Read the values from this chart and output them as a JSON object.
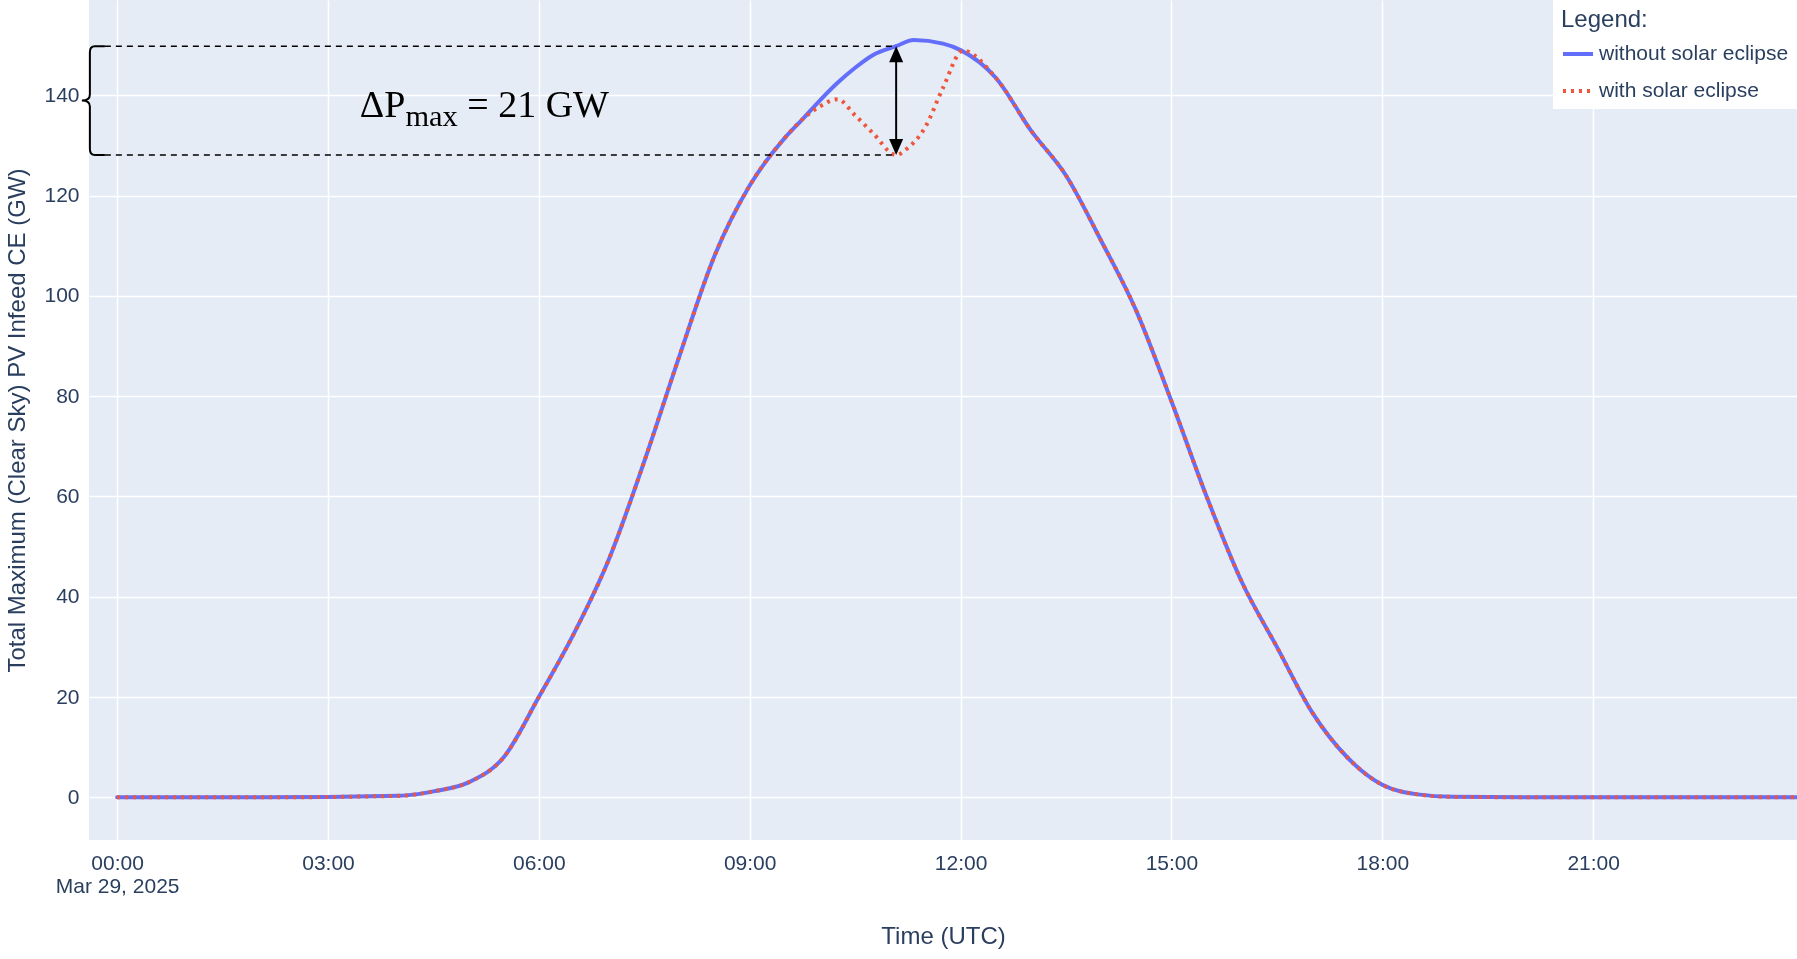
{
  "chart_data": {
    "type": "line",
    "xlabel": "Time (UTC)",
    "ylabel": "Total Maximum (Clear Sky) PV Infeed CE (GW)",
    "legend_title": "Legend:",
    "legend": "top right",
    "grid": true,
    "xlim": [
      "2025-03-28T23:36",
      "2025-03-29T23:54"
    ],
    "xticks": [
      {
        "value": "2025-03-29T00:00",
        "label": "00:00\nMar 29, 2025"
      },
      {
        "value": "2025-03-29T03:00",
        "label": "03:00"
      },
      {
        "value": "2025-03-29T06:00",
        "label": "06:00"
      },
      {
        "value": "2025-03-29T09:00",
        "label": "09:00"
      },
      {
        "value": "2025-03-29T12:00",
        "label": "12:00"
      },
      {
        "value": "2025-03-29T15:00",
        "label": "15:00"
      },
      {
        "value": "2025-03-29T18:00",
        "label": "18:00"
      },
      {
        "value": "2025-03-29T21:00",
        "label": "21:00"
      }
    ],
    "ylim": [
      -8.5,
      159
    ],
    "yticks": [
      0,
      20,
      40,
      60,
      80,
      100,
      120,
      140
    ],
    "annotations": [
      "ΔP$_{max}$ = 21 GW"
    ],
    "series": [
      {
        "name": "without solar eclipse",
        "color": "#636efa",
        "line_style": "solid",
        "x": [
          "2025-03-29T00:00",
          "2025-03-29T02:00",
          "2025-03-29T04:00",
          "2025-03-29T04:15",
          "2025-03-29T04:30",
          "2025-03-29T05:00",
          "2025-03-29T05:30",
          "2025-03-29T06:00",
          "2025-03-29T06:30",
          "2025-03-29T07:00",
          "2025-03-29T07:30",
          "2025-03-29T08:00",
          "2025-03-29T08:30",
          "2025-03-29T09:00",
          "2025-03-29T09:30",
          "2025-03-29T09:45",
          "2025-03-29T10:00",
          "2025-03-29T10:15",
          "2025-03-29T10:30",
          "2025-03-29T10:45",
          "2025-03-29T11:05",
          "2025-03-29T11:20",
          "2025-03-29T11:45",
          "2025-03-29T12:00",
          "2025-03-29T12:30",
          "2025-03-29T13:00",
          "2025-03-29T13:30",
          "2025-03-29T14:00",
          "2025-03-29T14:30",
          "2025-03-29T15:00",
          "2025-03-29T15:30",
          "2025-03-29T16:00",
          "2025-03-29T16:30",
          "2025-03-29T17:00",
          "2025-03-29T17:30",
          "2025-03-29T18:00",
          "2025-03-29T18:30",
          "2025-03-29T19:00",
          "2025-03-29T21:00",
          "2025-03-29T23:54"
        ],
        "values": [
          0,
          0,
          0.3,
          0.6,
          1.2,
          3,
          8,
          20,
          32.7,
          47.6,
          67,
          88,
          108,
          122,
          131.5,
          135.2,
          139,
          142.5,
          145.5,
          148,
          149.8,
          151,
          150.3,
          149,
          143.5,
          133,
          124,
          111,
          97,
          79,
          60,
          43,
          30,
          17,
          8,
          2.5,
          0.6,
          0.1,
          0,
          0
        ]
      },
      {
        "name": "with solar eclipse",
        "color": "#ef553b",
        "line_style": "dotted",
        "x": [
          "2025-03-29T00:00",
          "2025-03-29T02:00",
          "2025-03-29T04:00",
          "2025-03-29T04:15",
          "2025-03-29T04:30",
          "2025-03-29T05:00",
          "2025-03-29T05:30",
          "2025-03-29T06:00",
          "2025-03-29T06:30",
          "2025-03-29T07:00",
          "2025-03-29T07:30",
          "2025-03-29T08:00",
          "2025-03-29T08:30",
          "2025-03-29T09:00",
          "2025-03-29T09:30",
          "2025-03-29T09:45",
          "2025-03-29T10:00",
          "2025-03-29T10:15",
          "2025-03-29T10:30",
          "2025-03-29T10:45",
          "2025-03-29T11:05",
          "2025-03-29T11:15",
          "2025-03-29T11:30",
          "2025-03-29T11:45",
          "2025-03-29T12:02",
          "2025-03-29T12:30",
          "2025-03-29T13:00",
          "2025-03-29T13:30",
          "2025-03-29T14:00",
          "2025-03-29T14:30",
          "2025-03-29T15:00",
          "2025-03-29T15:30",
          "2025-03-29T16:00",
          "2025-03-29T16:30",
          "2025-03-29T17:00",
          "2025-03-29T17:30",
          "2025-03-29T18:00",
          "2025-03-29T18:30",
          "2025-03-29T19:00",
          "2025-03-29T21:00",
          "2025-03-29T23:54"
        ],
        "values": [
          0,
          0,
          0.3,
          0.6,
          1.2,
          3,
          8,
          20,
          32.7,
          47.6,
          67,
          88,
          108,
          122,
          131.5,
          135.2,
          137.8,
          139.2,
          136,
          132.5,
          128.1,
          129.5,
          133.7,
          141.5,
          148.9,
          143.5,
          133,
          124,
          111,
          97,
          79,
          60,
          43,
          30,
          17,
          8,
          2.5,
          0.6,
          0.1,
          0,
          0
        ]
      }
    ]
  }
}
